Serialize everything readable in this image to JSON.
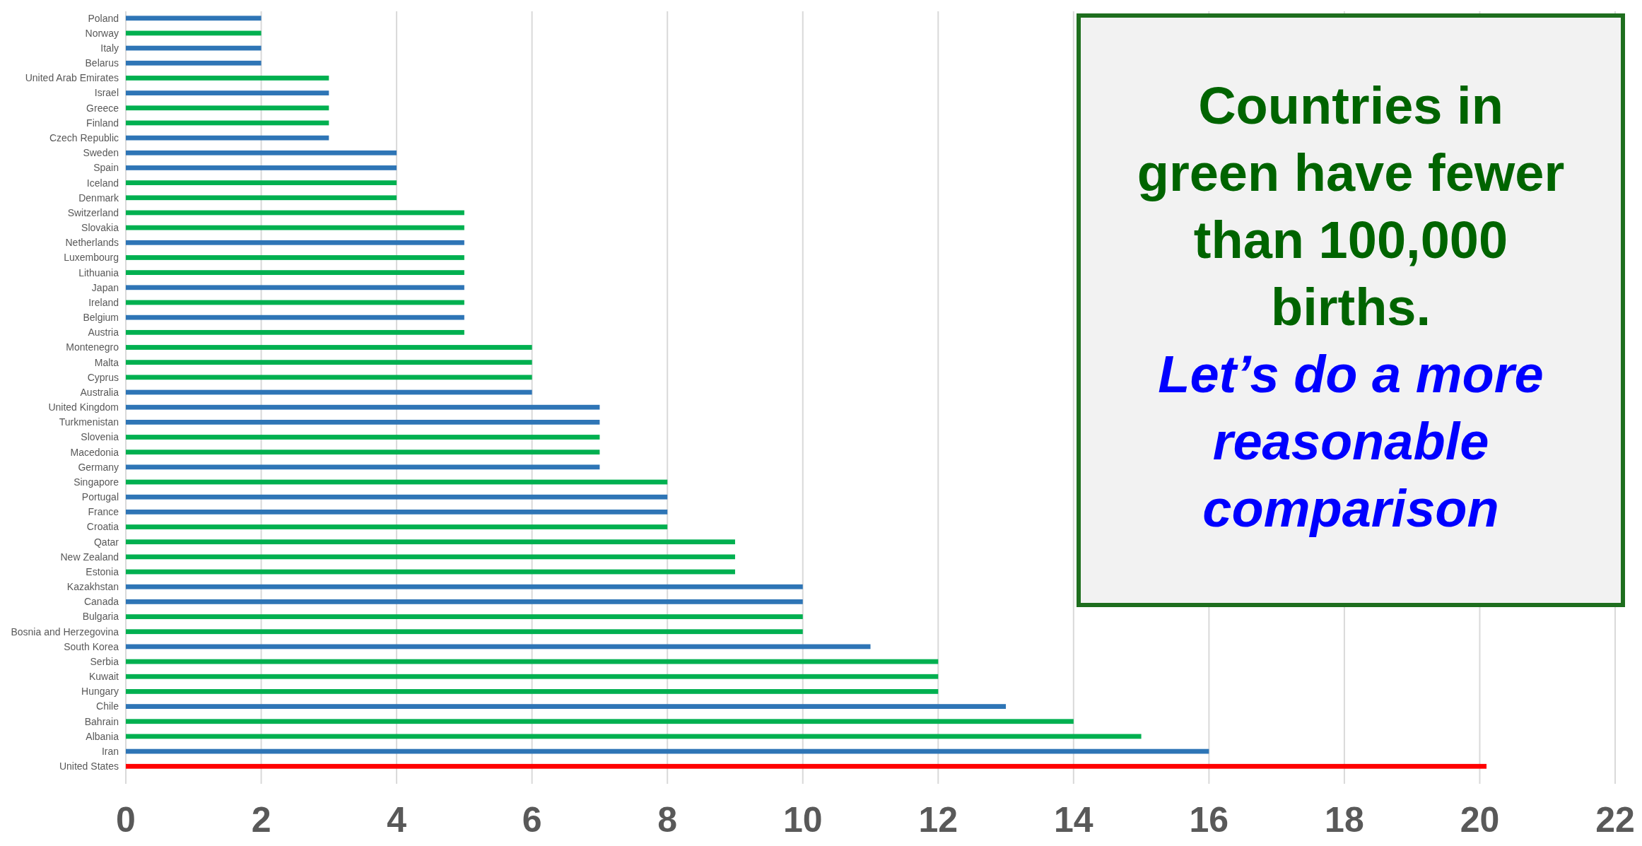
{
  "chart_data": {
    "type": "bar",
    "orientation": "horizontal",
    "categories": [
      "Poland",
      "Norway",
      "Italy",
      "Belarus",
      "United Arab Emirates",
      "Israel",
      "Greece",
      "Finland",
      "Czech Republic",
      "Sweden",
      "Spain",
      "Iceland",
      "Denmark",
      "Switzerland",
      "Slovakia",
      "Netherlands",
      "Luxembourg",
      "Lithuania",
      "Japan",
      "Ireland",
      "Belgium",
      "Austria",
      "Montenegro",
      "Malta",
      "Cyprus",
      "Australia",
      "United Kingdom",
      "Turkmenistan",
      "Slovenia",
      "Macedonia",
      "Germany",
      "Singapore",
      "Portugal",
      "France",
      "Croatia",
      "Qatar",
      "New Zealand",
      "Estonia",
      "Kazakhstan",
      "Canada",
      "Bulgaria",
      "Bosnia and Herzegovina",
      "South Korea",
      "Serbia",
      "Kuwait",
      "Hungary",
      "Chile",
      "Bahrain",
      "Albania",
      "Iran",
      "United States"
    ],
    "values": [
      2,
      2,
      2,
      2,
      3,
      3,
      3,
      3,
      3,
      4,
      4,
      4,
      4,
      5,
      5,
      5,
      5,
      5,
      5,
      5,
      5,
      5,
      6,
      6,
      6,
      6,
      7,
      7,
      7,
      7,
      7,
      8,
      8,
      8,
      8,
      9,
      9,
      9,
      10,
      10,
      10,
      10,
      11,
      12,
      12,
      12,
      13,
      14,
      15,
      16,
      20.1
    ],
    "colors": [
      "#2e75b6",
      "#00b050",
      "#2e75b6",
      "#2e75b6",
      "#00b050",
      "#2e75b6",
      "#00b050",
      "#00b050",
      "#2e75b6",
      "#2e75b6",
      "#2e75b6",
      "#00b050",
      "#00b050",
      "#00b050",
      "#00b050",
      "#2e75b6",
      "#00b050",
      "#00b050",
      "#2e75b6",
      "#00b050",
      "#2e75b6",
      "#00b050",
      "#00b050",
      "#00b050",
      "#00b050",
      "#2e75b6",
      "#2e75b6",
      "#2e75b6",
      "#00b050",
      "#00b050",
      "#2e75b6",
      "#00b050",
      "#2e75b6",
      "#2e75b6",
      "#00b050",
      "#00b050",
      "#00b050",
      "#00b050",
      "#2e75b6",
      "#2e75b6",
      "#00b050",
      "#00b050",
      "#2e75b6",
      "#00b050",
      "#00b050",
      "#00b050",
      "#2e75b6",
      "#00b050",
      "#00b050",
      "#2e75b6",
      "#ff0000"
    ],
    "xlim": [
      0,
      22
    ],
    "xticks": [
      0,
      2,
      4,
      6,
      8,
      10,
      12,
      14,
      16,
      18,
      20,
      22
    ],
    "grid": "x",
    "annotations": [
      "Countries in green have fewer than 100,000 births.",
      "Let’s do a more reasonable comparison"
    ]
  }
}
